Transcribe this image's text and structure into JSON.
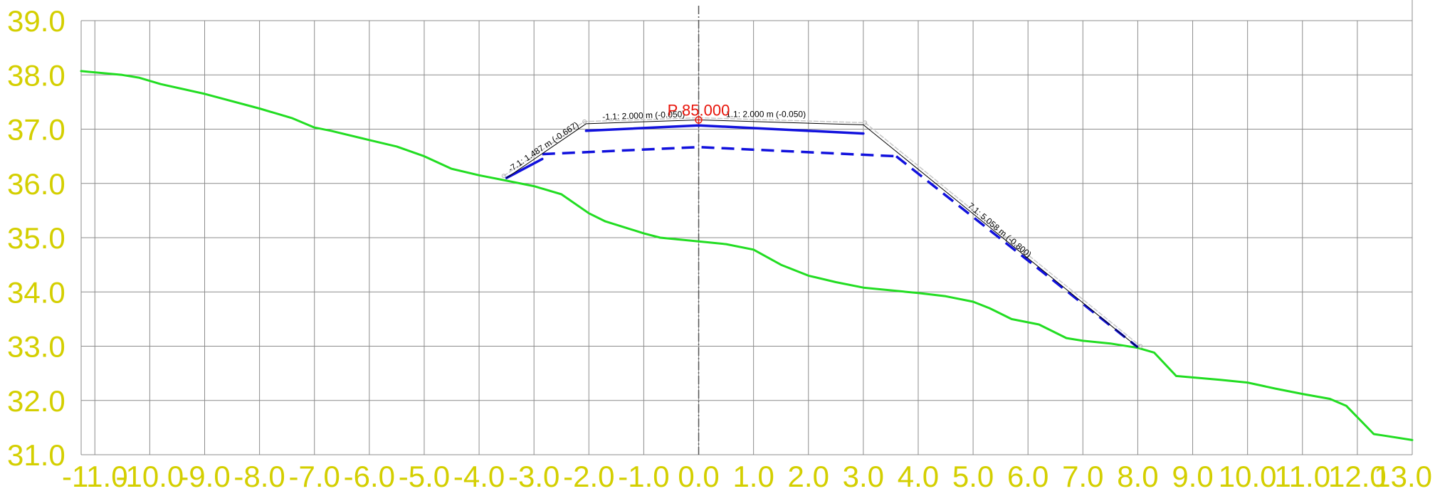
{
  "chart_data": {
    "type": "line",
    "xlim": [
      -11.25,
      13.0
    ],
    "ylim": [
      31.0,
      39.0
    ],
    "grid": true,
    "x_ticks": [
      -11.0,
      -10.0,
      -9.0,
      -8.0,
      -7.0,
      -6.0,
      -5.0,
      -4.0,
      -3.0,
      -2.0,
      -1.0,
      0.0,
      1.0,
      2.0,
      3.0,
      4.0,
      5.0,
      6.0,
      7.0,
      8.0,
      9.0,
      10.0,
      11.0,
      12.0,
      13.0
    ],
    "x_tick_labels": [
      "-11.0",
      "-10.0",
      "-9.0",
      "-8.0",
      "-7.0",
      "-6.0",
      "-5.0",
      "-4.0",
      "-3.0",
      "-2.0",
      "-1.0",
      "0.0",
      "1.0",
      "2.0",
      "3.0",
      "4.0",
      "5.0",
      "6.0",
      "7.0",
      "8.0",
      "9.0",
      "10.0",
      "11.0",
      "12.0",
      "13.0"
    ],
    "y_ticks": [
      31.0,
      32.0,
      33.0,
      34.0,
      35.0,
      36.0,
      37.0,
      38.0,
      39.0
    ],
    "y_tick_labels": [
      "31.0",
      "32.0",
      "33.0",
      "34.0",
      "35.0",
      "36.0",
      "37.0",
      "38.0",
      "39.0"
    ],
    "station_label": "P 85.000",
    "station_point": [
      0.0,
      37.17
    ],
    "series": [
      {
        "role": "ground",
        "color": "#22dd22",
        "style": "solid",
        "points": [
          [
            -11.25,
            38.07
          ],
          [
            -10.5,
            38.0
          ],
          [
            -10.2,
            37.95
          ],
          [
            -9.8,
            37.83
          ],
          [
            -9.0,
            37.65
          ],
          [
            -8.0,
            37.38
          ],
          [
            -7.4,
            37.2
          ],
          [
            -7.0,
            37.03
          ],
          [
            -6.7,
            36.97
          ],
          [
            -6.0,
            36.8
          ],
          [
            -5.5,
            36.68
          ],
          [
            -5.0,
            36.5
          ],
          [
            -4.5,
            36.27
          ],
          [
            -4.0,
            36.15
          ],
          [
            -3.5,
            36.05
          ],
          [
            -3.0,
            35.95
          ],
          [
            -2.5,
            35.8
          ],
          [
            -2.0,
            35.45
          ],
          [
            -1.7,
            35.3
          ],
          [
            -1.0,
            35.08
          ],
          [
            -0.7,
            35.0
          ],
          [
            0.0,
            34.93
          ],
          [
            0.5,
            34.88
          ],
          [
            1.0,
            34.78
          ],
          [
            1.5,
            34.5
          ],
          [
            2.0,
            34.3
          ],
          [
            2.5,
            34.18
          ],
          [
            3.0,
            34.08
          ],
          [
            4.0,
            33.98
          ],
          [
            4.5,
            33.92
          ],
          [
            5.0,
            33.82
          ],
          [
            5.3,
            33.7
          ],
          [
            5.7,
            33.5
          ],
          [
            6.2,
            33.4
          ],
          [
            6.7,
            33.15
          ],
          [
            7.0,
            33.1
          ],
          [
            7.5,
            33.05
          ],
          [
            8.0,
            32.97
          ],
          [
            8.3,
            32.88
          ],
          [
            8.7,
            32.45
          ],
          [
            9.5,
            32.38
          ],
          [
            10.0,
            32.33
          ],
          [
            10.5,
            32.22
          ],
          [
            11.0,
            32.12
          ],
          [
            11.5,
            32.03
          ],
          [
            11.8,
            31.9
          ],
          [
            12.3,
            31.38
          ],
          [
            12.5,
            31.35
          ],
          [
            13.0,
            31.27
          ]
        ]
      },
      {
        "role": "design-surface",
        "color": "#1111dd",
        "style": "solid",
        "points": [
          [
            -3.5,
            36.1
          ],
          [
            -2.85,
            36.45
          ]
        ]
      },
      {
        "role": "design-surface",
        "color": "#1111dd",
        "style": "solid",
        "points": [
          [
            -2.05,
            36.97
          ],
          [
            0.0,
            37.07
          ],
          [
            3.0,
            36.92
          ]
        ]
      },
      {
        "role": "subgrade",
        "color": "#1111dd",
        "style": "dashed",
        "points": [
          [
            -2.85,
            36.54
          ],
          [
            0.0,
            36.67
          ],
          [
            3.6,
            36.5
          ]
        ]
      },
      {
        "role": "fill-slope",
        "color": "#1111dd",
        "style": "dashed",
        "points": [
          [
            3.6,
            36.5
          ],
          [
            8.0,
            32.98
          ]
        ]
      },
      {
        "role": "boundary",
        "color": "#000000",
        "style": "thin",
        "points": [
          [
            -3.5,
            36.1
          ],
          [
            -2.05,
            37.1
          ],
          [
            0.0,
            37.17
          ],
          [
            3.0,
            37.08
          ],
          [
            8.0,
            32.98
          ]
        ]
      },
      {
        "role": "dimension",
        "color": "#c8c8c8",
        "style": "dimension",
        "points": [
          [
            -3.55,
            36.14
          ],
          [
            -2.08,
            37.14
          ],
          [
            0.0,
            37.21
          ],
          [
            3.03,
            37.12
          ],
          [
            8.05,
            33.0
          ]
        ]
      }
    ],
    "annotations": [
      {
        "text": "-7.1: 1.487 m (-0.667)",
        "x": -2.8,
        "y": 36.63,
        "angle": -34
      },
      {
        "text": "-1.1: 2.000 m (-0.050)",
        "x": -1.0,
        "y": 37.2,
        "angle": -2
      },
      {
        "text": "-1.1: 2.000 m (-0.050)",
        "x": 1.2,
        "y": 37.22,
        "angle": 0
      },
      {
        "text": "7.1: 5.058 m (-0.800)",
        "x": 5.45,
        "y": 35.1,
        "angle": 40
      }
    ]
  }
}
